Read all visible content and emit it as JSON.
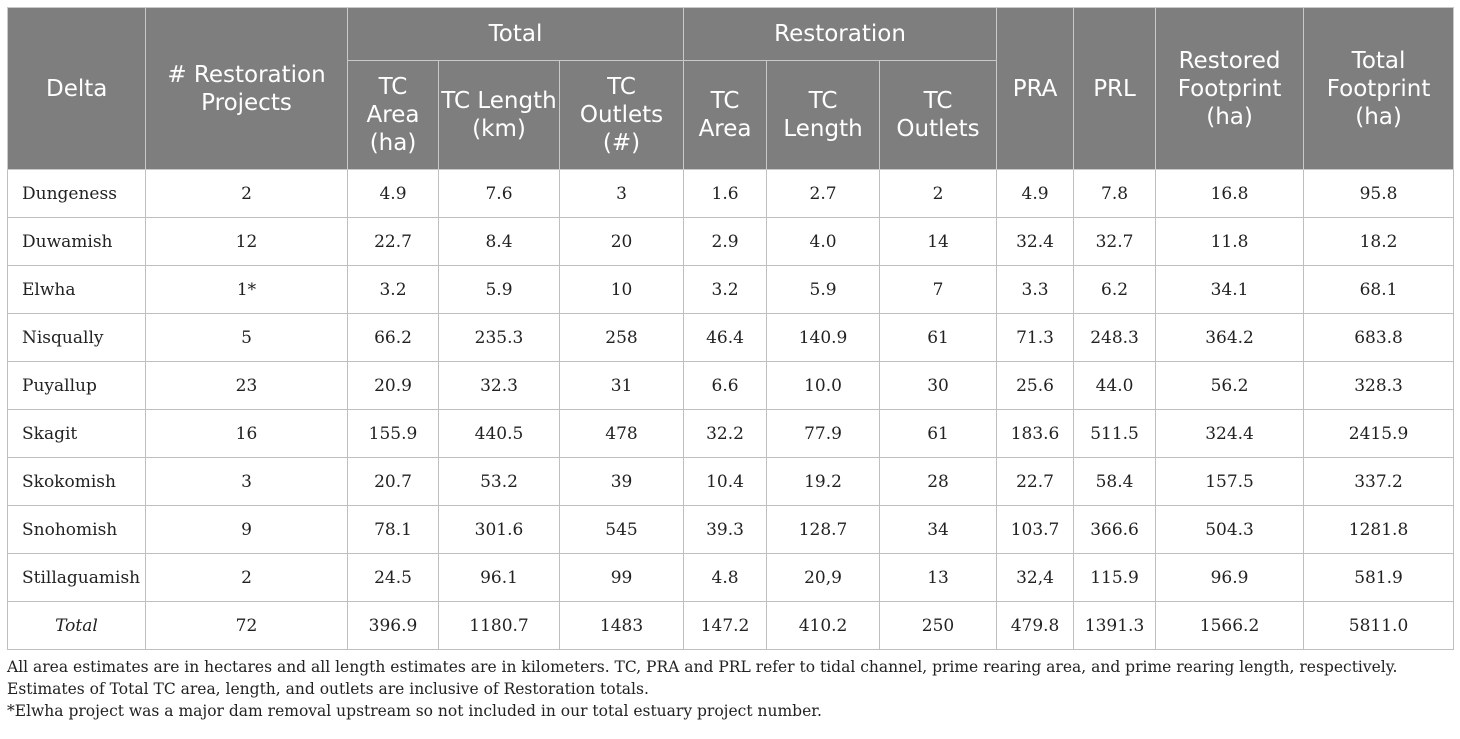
{
  "table": {
    "headers": {
      "delta": "Delta",
      "projects": "# Restoration Projects",
      "group_total": "Total",
      "group_restoration": "Restoration",
      "total_tc_area": "TC Area (ha)",
      "total_tc_length": "TC Length (km)",
      "total_tc_outlets": "TC Outlets (#)",
      "rest_tc_area": "TC Area",
      "rest_tc_length": "TC Length",
      "rest_tc_outlets": "TC Outlets",
      "pra": "PRA",
      "prl": "PRL",
      "restored_footprint": "Restored Footprint (ha)",
      "total_footprint": "Total Footprint (ha)"
    },
    "rows": [
      [
        "Dungeness",
        "2",
        "4.9",
        "7.6",
        "3",
        "1.6",
        "2.7",
        "2",
        "4.9",
        "7.8",
        "16.8",
        "95.8"
      ],
      [
        "Duwamish",
        "12",
        "22.7",
        "8.4",
        "20",
        "2.9",
        "4.0",
        "14",
        "32.4",
        "32.7",
        "11.8",
        "18.2"
      ],
      [
        "Elwha",
        "1*",
        "3.2",
        "5.9",
        "10",
        "3.2",
        "5.9",
        "7",
        "3.3",
        "6.2",
        "34.1",
        "68.1"
      ],
      [
        "Nisqually",
        "5",
        "66.2",
        "235.3",
        "258",
        "46.4",
        "140.9",
        "61",
        "71.3",
        "248.3",
        "364.2",
        "683.8"
      ],
      [
        "Puyallup",
        "23",
        "20.9",
        "32.3",
        "31",
        "6.6",
        "10.0",
        "30",
        "25.6",
        "44.0",
        "56.2",
        "328.3"
      ],
      [
        "Skagit",
        "16",
        "155.9",
        "440.5",
        "478",
        "32.2",
        "77.9",
        "61",
        "183.6",
        "511.5",
        "324.4",
        "2415.9"
      ],
      [
        "Skokomish",
        "3",
        "20.7",
        "53.2",
        "39",
        "10.4",
        "19.2",
        "28",
        "22.7",
        "58.4",
        "157.5",
        "337.2"
      ],
      [
        "Snohomish",
        "9",
        "78.1",
        "301.6",
        "545",
        "39.3",
        "128.7",
        "34",
        "103.7",
        "366.6",
        "504.3",
        "1281.8"
      ],
      [
        "Stillaguamish",
        "2",
        "24.5",
        "96.1",
        "99",
        "4.8",
        "20,9",
        "13",
        "32,4",
        "115.9",
        "96.9",
        "581.9"
      ]
    ],
    "total_row": [
      "Total",
      "72",
      "396.9",
      "1180.7",
      "1483",
      "147.2",
      "410.2",
      "250",
      "479.8",
      "1391.3",
      "1566.2",
      "5811.0"
    ]
  },
  "notes": {
    "line1": "All area estimates are in hectares and all length estimates are in kilometers. TC, PRA and PRL refer to tidal channel, prime rearing area, and prime rearing length, respectively. Estimates of Total TC area, length, and outlets are inclusive of Restoration totals.",
    "line2": "*Elwha project was a major dam removal upstream so not included in our total estuary project number."
  }
}
